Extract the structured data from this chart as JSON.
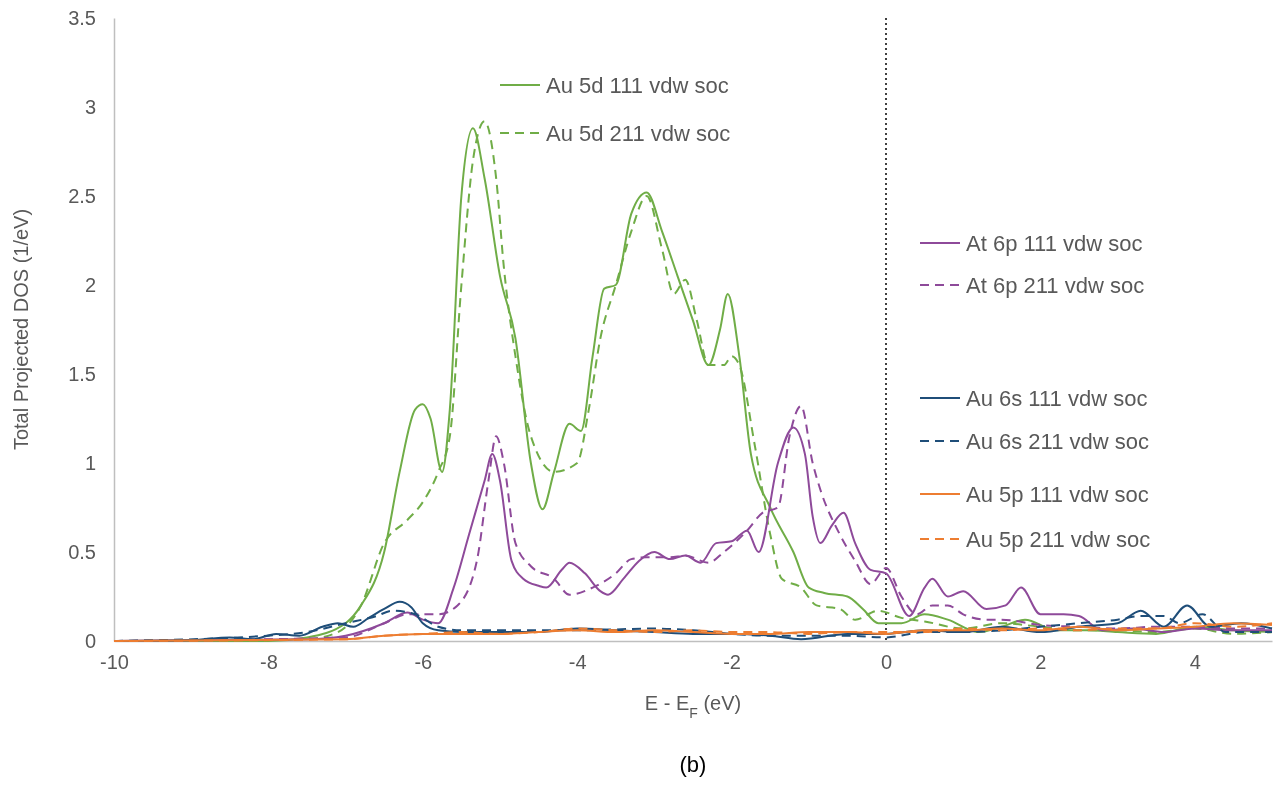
{
  "chart_data": {
    "type": "line",
    "xlabel": "E - E$_{F}$ (eV)",
    "ylabel": "Total Projected DOS (1/eV)",
    "xlim": [
      -10,
      5
    ],
    "xticks": [
      -10,
      -8,
      -6,
      -4,
      -2,
      0,
      2,
      4
    ],
    "ylim": [
      0,
      3.5
    ],
    "yticks": [
      0,
      0.5,
      1,
      1.5,
      2,
      2.5,
      3,
      3.5
    ],
    "grid": false,
    "legend": "right",
    "annotations": [
      "(b)"
    ],
    "ref_lines": [
      {
        "axis": "x",
        "value": 0,
        "color": "#000000",
        "line_style": "dotted"
      }
    ],
    "series": [
      {
        "name": "Au 5d 111 vdw soc",
        "color": "#70ad47",
        "line_style": "solid",
        "x": [
          -10,
          -8,
          -7.5,
          -7,
          -6.8,
          -6.5,
          -6.3,
          -6.1,
          -6,
          -5.9,
          -5.75,
          -5.65,
          -5.5,
          -5.35,
          -5.2,
          -5,
          -4.8,
          -4.6,
          -4.45,
          -4.3,
          -4.1,
          -3.95,
          -3.8,
          -3.65,
          -3.5,
          -3.3,
          -3.1,
          -2.9,
          -2.7,
          -2.5,
          -2.3,
          -2.15,
          -2.05,
          -1.9,
          -1.75,
          -1.5,
          -1.2,
          -1,
          -0.8,
          -0.5,
          -0.3,
          -0.1,
          0.2,
          0.5,
          0.8,
          1.2,
          1.5,
          1.8,
          2.2,
          2.6,
          3,
          3.5,
          4,
          4.5,
          5
        ],
        "values": [
          0,
          0,
          0.02,
          0.1,
          0.2,
          0.5,
          0.95,
          1.3,
          1.33,
          1.25,
          0.95,
          1.3,
          2.5,
          2.88,
          2.6,
          2.05,
          1.7,
          1.0,
          0.74,
          0.95,
          1.22,
          1.18,
          1.6,
          1.98,
          2.0,
          2.4,
          2.52,
          2.3,
          2.05,
          1.8,
          1.55,
          1.75,
          1.95,
          1.6,
          1.05,
          0.75,
          0.5,
          0.3,
          0.27,
          0.25,
          0.18,
          0.1,
          0.1,
          0.15,
          0.12,
          0.05,
          0.08,
          0.12,
          0.06,
          0.06,
          0.05,
          0.04,
          0.08,
          0.06,
          0.05
        ]
      },
      {
        "name": "Au 5d 211 vdw soc",
        "color": "#70ad47",
        "line_style": "dashed",
        "x": [
          -10,
          -7.5,
          -7.1,
          -6.8,
          -6.5,
          -6.2,
          -6,
          -5.8,
          -5.65,
          -5.5,
          -5.35,
          -5.2,
          -5.05,
          -4.95,
          -4.8,
          -4.6,
          -4.3,
          -4,
          -3.85,
          -3.7,
          -3.5,
          -3.3,
          -3.1,
          -2.9,
          -2.75,
          -2.6,
          -2.45,
          -2.3,
          -2.1,
          -2,
          -1.9,
          -1.7,
          -1.5,
          -1.35,
          -1.1,
          -0.9,
          -0.6,
          -0.4,
          -0.1,
          0.2,
          0.5,
          1,
          1.5,
          2,
          2.5,
          3,
          3.5,
          4,
          4.5,
          5
        ],
        "values": [
          0,
          0.01,
          0.05,
          0.2,
          0.55,
          0.68,
          0.78,
          0.95,
          1.15,
          2.0,
          2.7,
          2.92,
          2.6,
          2.1,
          1.6,
          1.15,
          0.95,
          1.0,
          1.3,
          1.7,
          2.0,
          2.3,
          2.5,
          2.2,
          1.95,
          2.03,
          1.8,
          1.55,
          1.55,
          1.6,
          1.55,
          1.1,
          0.6,
          0.35,
          0.3,
          0.2,
          0.18,
          0.12,
          0.17,
          0.13,
          0.11,
          0.07,
          0.1,
          0.08,
          0.06,
          0.06,
          0.05,
          0.07,
          0.04,
          0.05
        ]
      },
      {
        "name": "At 6p 111 vdw soc",
        "color": "#8e4a9a",
        "line_style": "solid",
        "x": [
          -10,
          -7.5,
          -7,
          -6.5,
          -6.2,
          -6,
          -5.8,
          -5.6,
          -5.4,
          -5.2,
          -5.1,
          -5,
          -4.85,
          -4.7,
          -4.5,
          -4.4,
          -4.2,
          -4.1,
          -3.9,
          -3.7,
          -3.6,
          -3.4,
          -3.2,
          -3,
          -2.8,
          -2.6,
          -2.4,
          -2.2,
          -2,
          -1.8,
          -1.65,
          -1.4,
          -1.2,
          -1.05,
          -0.95,
          -0.85,
          -0.7,
          -0.55,
          -0.4,
          -0.2,
          0,
          0.3,
          0.5,
          0.6,
          0.8,
          1,
          1.3,
          1.55,
          1.75,
          2,
          2.3,
          2.5,
          2.8,
          3.2,
          3.6,
          4,
          4.5,
          5
        ],
        "values": [
          0,
          0.01,
          0.03,
          0.1,
          0.16,
          0.12,
          0.1,
          0.3,
          0.6,
          0.9,
          1.05,
          0.9,
          0.45,
          0.35,
          0.31,
          0.3,
          0.4,
          0.44,
          0.38,
          0.28,
          0.26,
          0.35,
          0.45,
          0.5,
          0.46,
          0.48,
          0.44,
          0.55,
          0.56,
          0.62,
          0.5,
          1.0,
          1.2,
          1.05,
          0.7,
          0.55,
          0.65,
          0.72,
          0.55,
          0.4,
          0.38,
          0.14,
          0.3,
          0.35,
          0.25,
          0.28,
          0.18,
          0.2,
          0.3,
          0.15,
          0.15,
          0.14,
          0.06,
          0.07,
          0.05,
          0.07,
          0.06,
          0.06
        ]
      },
      {
        "name": "At 6p 211 vdw soc",
        "color": "#8e4a9a",
        "line_style": "dashed",
        "x": [
          -10,
          -7,
          -6.5,
          -6.2,
          -5.8,
          -5.55,
          -5.3,
          -5.15,
          -5.05,
          -4.95,
          -4.8,
          -4.6,
          -4.3,
          -4.1,
          -3.8,
          -3.5,
          -3.3,
          -3.1,
          -2.8,
          -2.6,
          -2.3,
          -2.1,
          -1.8,
          -1.6,
          -1.4,
          -1.25,
          -1.1,
          -0.95,
          -0.85,
          -0.6,
          -0.4,
          -0.2,
          0,
          0.2,
          0.4,
          0.6,
          0.8,
          1,
          1.3,
          1.5,
          2,
          2.5,
          3,
          3.5,
          4,
          4.5,
          5
        ],
        "values": [
          0,
          0.02,
          0.1,
          0.15,
          0.15,
          0.2,
          0.45,
          0.9,
          1.15,
          1.0,
          0.55,
          0.42,
          0.35,
          0.26,
          0.3,
          0.38,
          0.46,
          0.47,
          0.47,
          0.48,
          0.44,
          0.5,
          0.62,
          0.72,
          0.75,
          1.15,
          1.32,
          1.0,
          0.85,
          0.6,
          0.45,
          0.32,
          0.41,
          0.25,
          0.15,
          0.2,
          0.2,
          0.15,
          0.12,
          0.12,
          0.09,
          0.08,
          0.07,
          0.08,
          0.08,
          0.07,
          0.07
        ]
      },
      {
        "name": "Au 6s 111 vdw soc",
        "color": "#1f4e79",
        "line_style": "solid",
        "x": [
          -10,
          -9,
          -8.5,
          -8.2,
          -7.9,
          -7.6,
          -7.3,
          -7.1,
          -6.9,
          -6.7,
          -6.5,
          -6.3,
          -6.15,
          -6,
          -5.8,
          -5.5,
          -5,
          -4.5,
          -4,
          -3.5,
          -3,
          -2.5,
          -2,
          -1.5,
          -1.1,
          -0.5,
          0,
          0.5,
          1,
          1.5,
          2,
          2.5,
          3,
          3.3,
          3.6,
          3.9,
          4.2,
          4.6,
          5
        ],
        "values": [
          0,
          0.005,
          0.02,
          0.01,
          0.04,
          0.03,
          0.08,
          0.1,
          0.08,
          0.13,
          0.18,
          0.22,
          0.19,
          0.1,
          0.06,
          0.05,
          0.05,
          0.05,
          0.07,
          0.06,
          0.05,
          0.04,
          0.04,
          0.03,
          0.01,
          0.04,
          0.04,
          0.06,
          0.05,
          0.08,
          0.05,
          0.08,
          0.1,
          0.17,
          0.08,
          0.2,
          0.08,
          0.1,
          0.07
        ]
      },
      {
        "name": "Au 6s 211 vdw soc",
        "color": "#1f4e79",
        "line_style": "dashed",
        "x": [
          -10,
          -8,
          -7.5,
          -7,
          -6.6,
          -6.4,
          -6.1,
          -5.8,
          -5.5,
          -5,
          -4,
          -3,
          -2.5,
          -2,
          -1.5,
          -1,
          -0.5,
          0,
          0.5,
          1,
          1.5,
          2,
          2.5,
          3,
          3.3,
          3.6,
          3.8,
          4.1,
          4.4,
          5
        ],
        "values": [
          0,
          0.03,
          0.05,
          0.1,
          0.14,
          0.17,
          0.15,
          0.08,
          0.06,
          0.06,
          0.06,
          0.07,
          0.06,
          0.04,
          0.03,
          0.03,
          0.03,
          0.02,
          0.05,
          0.05,
          0.06,
          0.08,
          0.1,
          0.12,
          0.14,
          0.14,
          0.1,
          0.15,
          0.05,
          0.05
        ]
      },
      {
        "name": "Au 5p 111 vdw soc",
        "color": "#ed7d31",
        "line_style": "solid",
        "x": [
          -10,
          -7,
          -6.5,
          -6,
          -5.5,
          -5,
          -4.5,
          -4,
          -3.5,
          -3,
          -2.5,
          -2,
          -1.5,
          -1,
          -0.5,
          0,
          0.5,
          1,
          1.5,
          2,
          2.5,
          3,
          3.5,
          4,
          4.5,
          5
        ],
        "values": [
          0,
          0.01,
          0.03,
          0.04,
          0.04,
          0.04,
          0.05,
          0.06,
          0.05,
          0.06,
          0.05,
          0.04,
          0.04,
          0.05,
          0.05,
          0.04,
          0.06,
          0.06,
          0.07,
          0.06,
          0.08,
          0.06,
          0.07,
          0.08,
          0.1,
          0.09
        ]
      },
      {
        "name": "Au 5p 211 vdw soc",
        "color": "#ed7d31",
        "line_style": "dashed",
        "x": [
          -10,
          -7,
          -6.5,
          -6,
          -5.5,
          -5,
          -4.5,
          -4,
          -3.5,
          -3,
          -2.5,
          -2,
          -1.5,
          -1,
          -0.5,
          0,
          0.5,
          1,
          1.5,
          2,
          2.5,
          3,
          3.5,
          4,
          4.5,
          5
        ],
        "values": [
          0,
          0.01,
          0.03,
          0.04,
          0.05,
          0.04,
          0.05,
          0.07,
          0.06,
          0.05,
          0.06,
          0.05,
          0.05,
          0.04,
          0.05,
          0.05,
          0.05,
          0.07,
          0.06,
          0.07,
          0.06,
          0.07,
          0.07,
          0.1,
          0.08,
          0.1
        ]
      }
    ]
  }
}
